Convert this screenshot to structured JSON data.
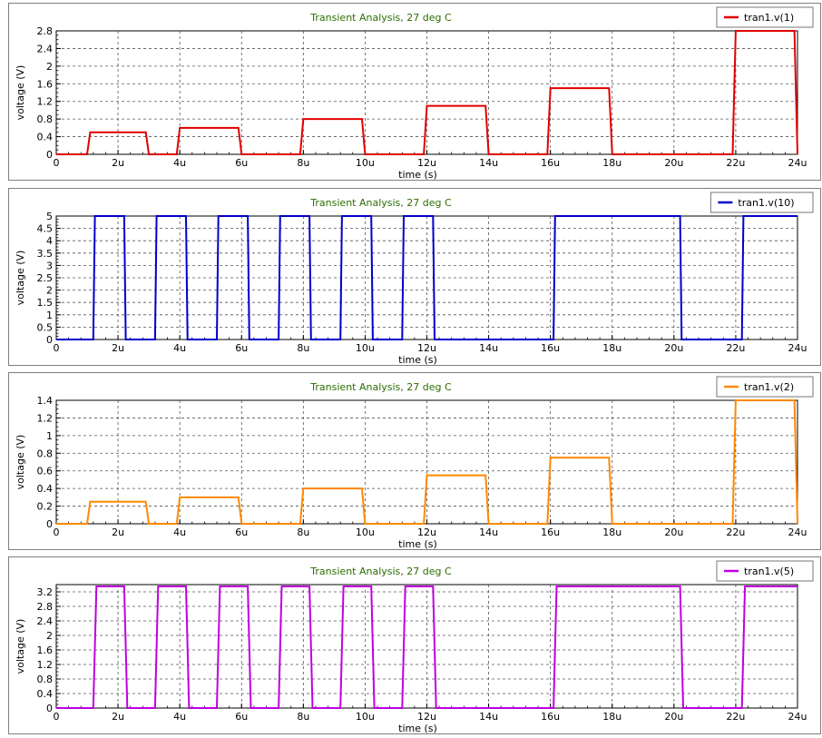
{
  "colors": {
    "red": "#e00000",
    "blue": "#0000cc",
    "orange": "#ff8800",
    "purple": "#c000e0",
    "title": "#2a6e00",
    "grid": "#444444"
  },
  "chart_data": [
    {
      "type": "line",
      "title": "Transient Analysis, 27 deg C",
      "xlabel": "time (s)",
      "ylabel": "voltage (V)",
      "xlim": [
        0,
        24
      ],
      "ylim": [
        0,
        2.8
      ],
      "x_unit_suffix": "u",
      "xticks": [
        0,
        2,
        4,
        6,
        8,
        10,
        12,
        14,
        16,
        18,
        20,
        22,
        24
      ],
      "xtick_labels": [
        "0",
        "2u",
        "4u",
        "6u",
        "8u",
        "10u",
        "12u",
        "14u",
        "16u",
        "18u",
        "20u",
        "22u",
        "24u"
      ],
      "yticks": [
        0,
        0.4,
        0.8,
        1.2,
        1.6,
        2.0,
        2.4,
        2.8
      ],
      "ytick_labels": [
        "0",
        "0.4",
        "0.8",
        "1.2",
        "1.6",
        "2",
        "2.4",
        "2.8"
      ],
      "grid": true,
      "legend_position": "top-right",
      "series": [
        {
          "name": "tran1.v(1)",
          "color": "#e00000",
          "x": [
            0,
            1,
            1.1,
            2.9,
            3.0,
            3.9,
            4.0,
            5.9,
            6.0,
            7.9,
            8.0,
            9.9,
            10.0,
            11.9,
            12.0,
            13.9,
            14.0,
            15.9,
            16.0,
            17.9,
            18.0,
            21.9,
            22.0,
            23.9,
            24.0
          ],
          "y": [
            0,
            0,
            0.5,
            0.5,
            0,
            0,
            0.6,
            0.6,
            0,
            0,
            0.8,
            0.8,
            0,
            0,
            1.1,
            1.1,
            0,
            0,
            1.5,
            1.5,
            0,
            0,
            2.8,
            2.8,
            0
          ]
        }
      ]
    },
    {
      "type": "line",
      "title": "Transient Analysis, 27 deg C",
      "xlabel": "time (s)",
      "ylabel": "voltage (V)",
      "xlim": [
        0,
        24
      ],
      "ylim": [
        0,
        5
      ],
      "xticks": [
        0,
        2,
        4,
        6,
        8,
        10,
        12,
        14,
        16,
        18,
        20,
        22,
        24
      ],
      "xtick_labels": [
        "0",
        "2u",
        "4u",
        "6u",
        "8u",
        "10u",
        "12u",
        "14u",
        "16u",
        "18u",
        "20u",
        "22u",
        "24u"
      ],
      "yticks": [
        0,
        0.5,
        1,
        1.5,
        2,
        2.5,
        3,
        3.5,
        4,
        4.5,
        5
      ],
      "ytick_labels": [
        "0",
        "0.5",
        "1",
        "1.5",
        "2",
        "2.5",
        "3",
        "3.5",
        "4",
        "4.5",
        "5"
      ],
      "grid": true,
      "legend_position": "top-right",
      "series": [
        {
          "name": "tran1.v(10)",
          "color": "#0000cc",
          "x": [
            0,
            1.2,
            1.25,
            2.2,
            2.25,
            3.2,
            3.25,
            4.2,
            4.25,
            5.2,
            5.25,
            6.2,
            6.25,
            7.2,
            7.25,
            8.2,
            8.25,
            9.2,
            9.25,
            10.2,
            10.25,
            11.2,
            11.25,
            12.2,
            12.25,
            16.1,
            16.15,
            20.2,
            20.25,
            22.2,
            22.25,
            24
          ],
          "y": [
            0,
            0,
            5,
            5,
            0,
            0,
            5,
            5,
            0,
            0,
            5,
            5,
            0,
            0,
            5,
            5,
            0,
            0,
            5,
            5,
            0,
            0,
            5,
            5,
            0,
            0,
            5,
            5,
            0,
            0,
            5,
            5
          ]
        }
      ]
    },
    {
      "type": "line",
      "title": "Transient Analysis, 27 deg C",
      "xlabel": "time (s)",
      "ylabel": "voltage (V)",
      "xlim": [
        0,
        24
      ],
      "ylim": [
        0,
        1.4
      ],
      "xticks": [
        0,
        2,
        4,
        6,
        8,
        10,
        12,
        14,
        16,
        18,
        20,
        22,
        24
      ],
      "xtick_labels": [
        "0",
        "2u",
        "4u",
        "6u",
        "8u",
        "10u",
        "12u",
        "14u",
        "16u",
        "18u",
        "20u",
        "22u",
        "24u"
      ],
      "yticks": [
        0,
        0.2,
        0.4,
        0.6,
        0.8,
        1.0,
        1.2,
        1.4
      ],
      "ytick_labels": [
        "0",
        "0.2",
        "0.4",
        "0.6",
        "0.8",
        "1",
        "1.2",
        "1.4"
      ],
      "grid": true,
      "legend_position": "top-right",
      "series": [
        {
          "name": "tran1.v(2)",
          "color": "#ff8800",
          "x": [
            0,
            1,
            1.1,
            2.9,
            3.0,
            3.9,
            4.0,
            5.9,
            6.0,
            7.9,
            8.0,
            9.9,
            10.0,
            11.9,
            12.0,
            13.9,
            14.0,
            15.9,
            16.0,
            17.9,
            18.0,
            21.9,
            22.0,
            23.9,
            24.0
          ],
          "y": [
            0,
            0,
            0.25,
            0.25,
            0,
            0,
            0.3,
            0.3,
            0,
            0,
            0.4,
            0.4,
            0,
            0,
            0.55,
            0.55,
            0,
            0,
            0.75,
            0.75,
            0,
            0,
            1.4,
            1.4,
            0
          ]
        }
      ]
    },
    {
      "type": "line",
      "title": "Transient Analysis, 27 deg C",
      "xlabel": "time (s)",
      "ylabel": "voltage (V)",
      "xlim": [
        0,
        24
      ],
      "ylim": [
        0,
        3.4
      ],
      "xticks": [
        0,
        2,
        4,
        6,
        8,
        10,
        12,
        14,
        16,
        18,
        20,
        22,
        24
      ],
      "xtick_labels": [
        "0",
        "2u",
        "4u",
        "6u",
        "8u",
        "10u",
        "12u",
        "14u",
        "16u",
        "18u",
        "20u",
        "22u",
        "24u"
      ],
      "yticks": [
        0,
        0.4,
        0.8,
        1.2,
        1.6,
        2.0,
        2.4,
        2.8,
        3.2
      ],
      "ytick_labels": [
        "0",
        "0.4",
        "0.8",
        "1.2",
        "1.6",
        "2",
        "2.4",
        "2.8",
        "3.2"
      ],
      "grid": true,
      "legend_position": "top-right",
      "series": [
        {
          "name": "tran1.v(5)",
          "color": "#c000e0",
          "x": [
            0,
            1.2,
            1.3,
            2.2,
            2.3,
            3.2,
            3.3,
            4.2,
            4.3,
            5.2,
            5.3,
            6.2,
            6.3,
            7.2,
            7.3,
            8.2,
            8.3,
            9.2,
            9.3,
            10.2,
            10.3,
            11.2,
            11.3,
            12.2,
            12.3,
            16.1,
            16.2,
            20.2,
            20.3,
            22.2,
            22.3,
            24
          ],
          "y": [
            0,
            0,
            3.35,
            3.35,
            0,
            0,
            3.35,
            3.35,
            0,
            0,
            3.35,
            3.35,
            0,
            0,
            3.35,
            3.35,
            0,
            0,
            3.35,
            3.35,
            0,
            0,
            3.35,
            3.35,
            0,
            0,
            3.35,
            3.35,
            0,
            0,
            3.35,
            3.35
          ]
        }
      ]
    }
  ]
}
